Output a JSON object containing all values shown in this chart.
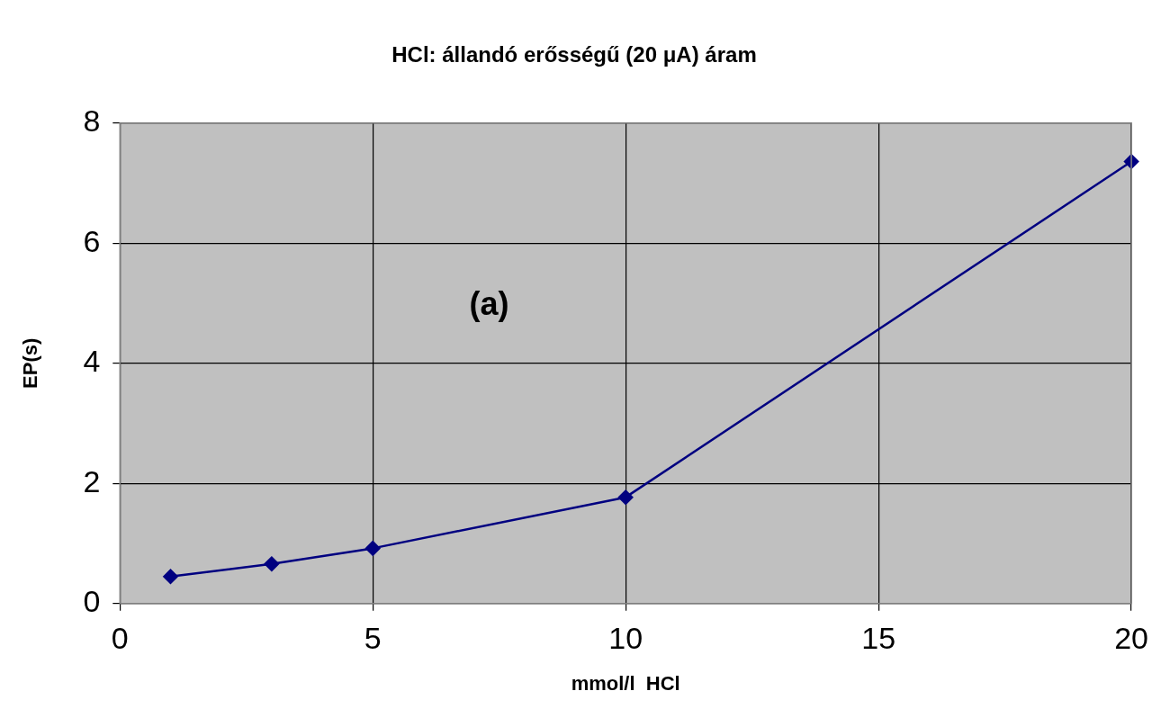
{
  "chart_data": {
    "type": "line",
    "title": "HCl: állandó erősségű (20 μA) áram",
    "xlabel": "mmol/l  HCl",
    "ylabel": "EP(s)",
    "x": [
      1,
      3,
      5,
      10,
      20
    ],
    "series": [
      {
        "color": "#000080",
        "values": [
          0.45,
          0.66,
          0.92,
          1.77,
          7.36
        ]
      }
    ],
    "xlim": [
      0,
      20
    ],
    "xticks": [
      0,
      5,
      10,
      15,
      20
    ],
    "ylim": [
      0,
      8
    ],
    "yticks": [
      0,
      2,
      4,
      6,
      8
    ],
    "grid": true,
    "legend": false,
    "marker": "diamond",
    "line_style": "solid",
    "annotations": [
      "(a)"
    ]
  }
}
